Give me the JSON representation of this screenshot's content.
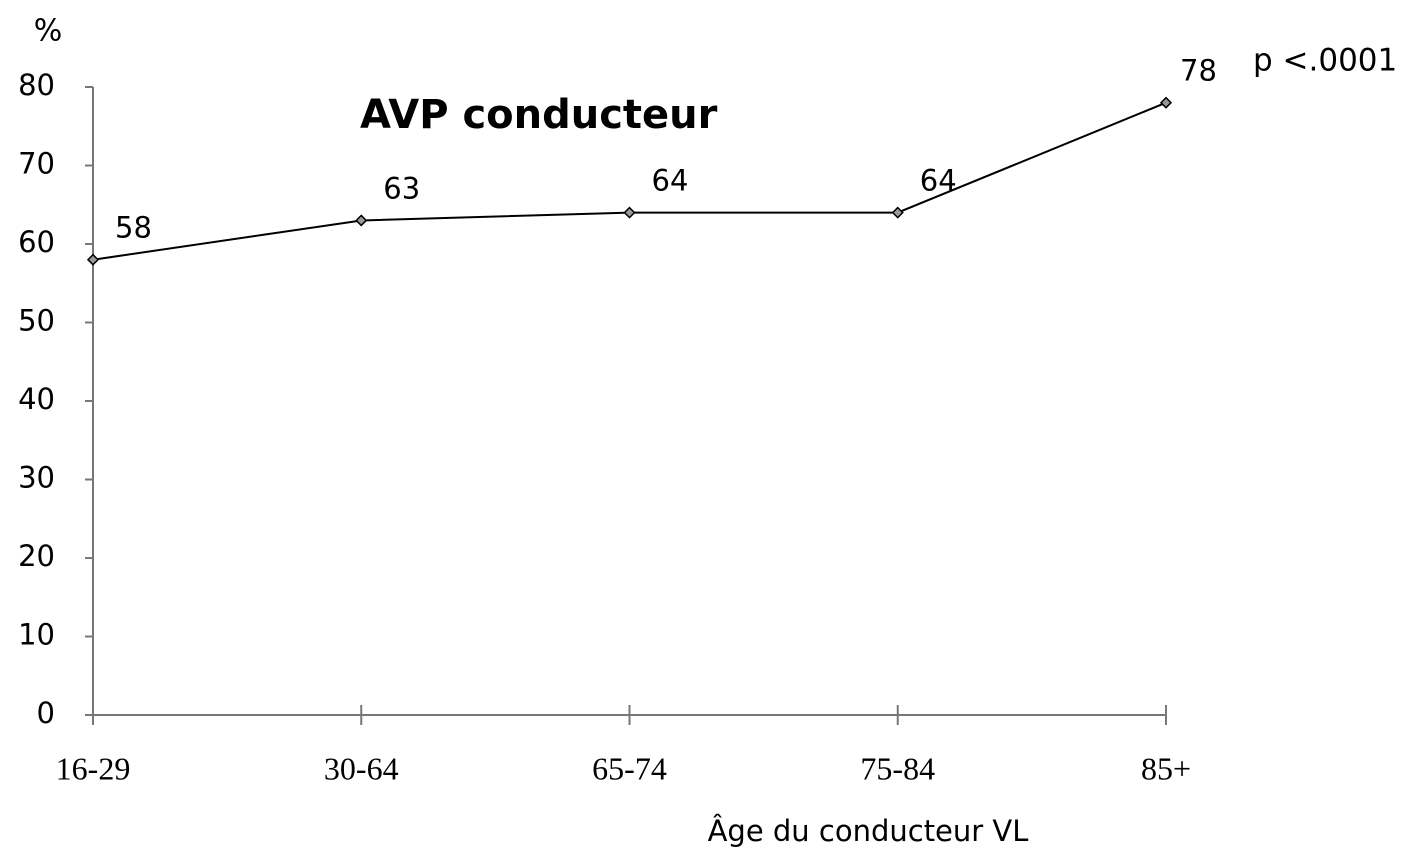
{
  "chart_data": {
    "type": "line",
    "title": "AVP conducteur",
    "annotation": "p <.0001",
    "y_axis_label": "%",
    "x_axis_label": "Âge du conducteur  VL",
    "categories": [
      "16-29",
      "30-64",
      "65-74",
      "75-84",
      "85+"
    ],
    "series": [
      {
        "name": "AVP conducteur",
        "color": "#000000",
        "values": [
          58,
          63,
          64,
          64,
          78
        ]
      }
    ],
    "ylim": [
      0,
      80
    ],
    "yticks": [
      0,
      10,
      20,
      30,
      40,
      50,
      60,
      70,
      80
    ],
    "grid": false,
    "legend": false
  }
}
